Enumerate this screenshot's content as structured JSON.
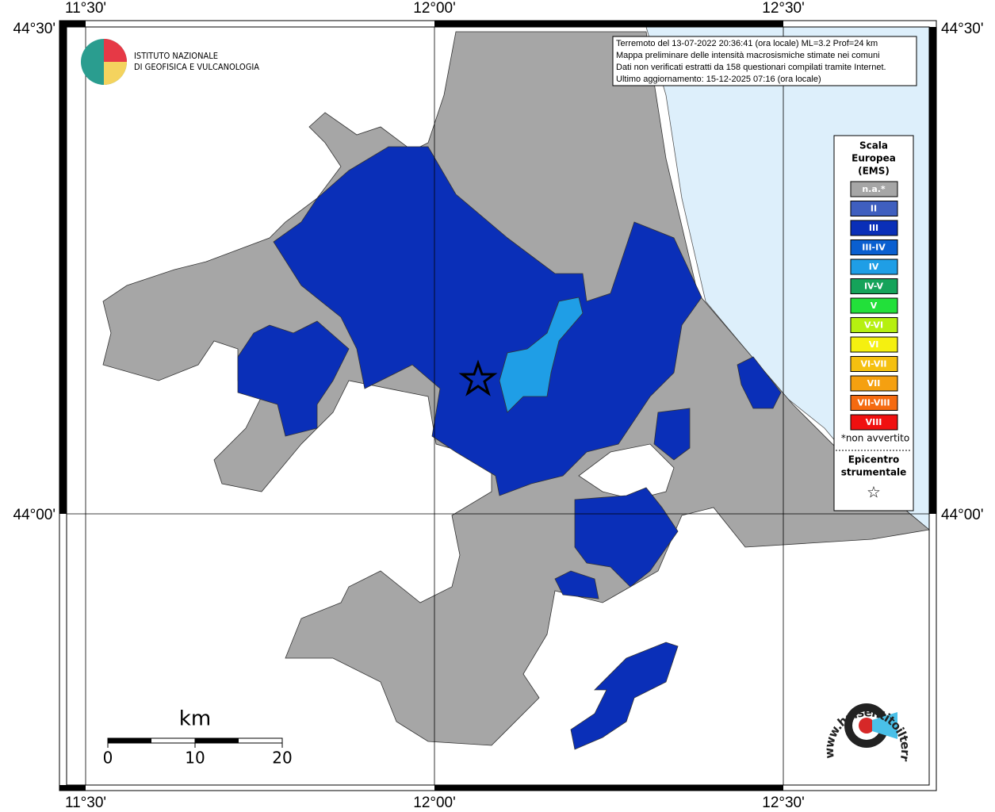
{
  "map": {
    "lon_labels": [
      "11°30'",
      "12°00'",
      "12°30'"
    ],
    "lat_labels": [
      "44°30'",
      "44°00'"
    ],
    "institute": [
      "ISTITUTO NAZIONALE",
      "DI GEOFISICA E VULCANOLOGIA"
    ],
    "info": [
      "Terremoto del 13-07-2022 20:36:41 (ora locale) ML=3.2 Prof=24 km",
      "Mappa preliminare delle intensità macrosismiche stimate nei comuni",
      "Dati non verificati estratti da 158 questionari compilati tramite Internet.",
      "Ultimo aggiornamento: 15-12-2025 07:16 (ora locale)"
    ],
    "legend": {
      "title": [
        "Scala",
        "Europea",
        "(EMS)"
      ],
      "entries": [
        {
          "label": "n.a.*",
          "color": "#a6a6a6"
        },
        {
          "label": "II",
          "color": "#3f5fbf"
        },
        {
          "label": "III",
          "color": "#0a2fb8"
        },
        {
          "label": "III-IV",
          "color": "#0a5fd0"
        },
        {
          "label": "IV",
          "color": "#1f9ee6"
        },
        {
          "label": "IV-V",
          "color": "#15a35a"
        },
        {
          "label": "V",
          "color": "#22e03a"
        },
        {
          "label": "V-VI",
          "color": "#b6f010"
        },
        {
          "label": "VI",
          "color": "#f5f010"
        },
        {
          "label": "VI-VII",
          "color": "#f5c010"
        },
        {
          "label": "VII",
          "color": "#f5a010"
        },
        {
          "label": "VII-VIII",
          "color": "#f56a10"
        },
        {
          "label": "VIII",
          "color": "#f01010"
        }
      ],
      "note": "*non avvertito",
      "epicenter_title": [
        "Epicentro",
        "strumentale"
      ],
      "epicenter_symbol": "☆"
    },
    "scale": {
      "unit": "km",
      "ticks": [
        0,
        10,
        20
      ],
      "max": 20
    },
    "website": "www.haisentitoilterremoto.it"
  }
}
